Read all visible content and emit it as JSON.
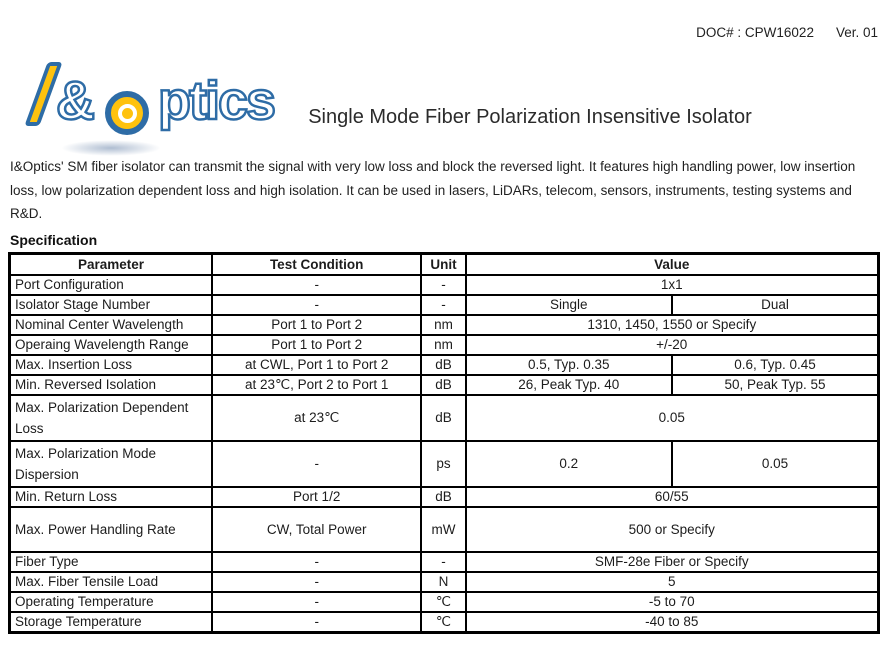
{
  "doc_header": {
    "doc_number": "DOC# : CPW16022",
    "version": "Ver. 01"
  },
  "logo": {
    "name": "I&Optics logo",
    "amp": "&",
    "ptics": "ptics",
    "colors": {
      "blue": "#2e6ca6",
      "yellow": "#ffc20e"
    }
  },
  "title": "Single Mode Fiber Polarization Insensitive Isolator",
  "description": "I&Optics' SM fiber isolator can transmit the signal with very low loss and block the reversed light. It features high handling power, low insertion loss, low polarization dependent loss and high isolation. It can be used in lasers, LiDARs, telecom, sensors, instruments, testing systems and R&D.",
  "spec": {
    "heading": "Specification",
    "columns": [
      "Parameter",
      "Test Condition",
      "Unit",
      "Value"
    ],
    "rows": [
      {
        "param": "Port Configuration",
        "cond": "-",
        "unit": "-",
        "values": [
          "1x1"
        ]
      },
      {
        "param": "Isolator Stage Number",
        "cond": "-",
        "unit": "-",
        "values": [
          "Single",
          "Dual"
        ]
      },
      {
        "param": "Nominal Center Wavelength",
        "cond": "Port 1 to Port 2",
        "unit": "nm",
        "values": [
          "1310, 1450, 1550 or Specify"
        ]
      },
      {
        "param": "Operaing Wavelength Range",
        "cond": "Port 1 to Port 2",
        "unit": "nm",
        "values": [
          "+/-20"
        ]
      },
      {
        "param": "Max. Insertion Loss",
        "cond": "at CWL, Port 1 to Port 2",
        "unit": "dB",
        "values": [
          "0.5, Typ. 0.35",
          "0.6, Typ. 0.45"
        ]
      },
      {
        "param": "Min. Reversed Isolation",
        "cond": "at 23℃, Port 2 to Port 1",
        "unit": "dB",
        "values": [
          "26, Peak Typ. 40",
          "50, Peak Typ. 55"
        ]
      },
      {
        "param": "Max. Polarization Dependent Loss",
        "cond": "at 23℃",
        "unit": "dB",
        "values": [
          "0.05"
        ]
      },
      {
        "param": "Max. Polarization Mode Dispersion",
        "cond": "-",
        "unit": "ps",
        "values": [
          "0.2",
          "0.05"
        ]
      },
      {
        "param": "Min. Return Loss",
        "cond": "Port 1/2",
        "unit": "dB",
        "values": [
          "60/55"
        ]
      },
      {
        "param": "Max. Power Handling Rate",
        "cond": "CW, Total Power",
        "unit": "mW",
        "values": [
          "500 or Specify"
        ]
      },
      {
        "param": "Fiber Type",
        "cond": "-",
        "unit": "-",
        "values": [
          "SMF-28e Fiber or Specify"
        ]
      },
      {
        "param": "Max. Fiber Tensile Load",
        "cond": "-",
        "unit": "N",
        "values": [
          "5"
        ]
      },
      {
        "param": "Operating Temperature",
        "cond": "-",
        "unit": "℃",
        "values": [
          "-5 to 70"
        ]
      },
      {
        "param": "Storage Temperature",
        "cond": "-",
        "unit": "℃",
        "values": [
          "-40 to 85"
        ]
      }
    ]
  }
}
